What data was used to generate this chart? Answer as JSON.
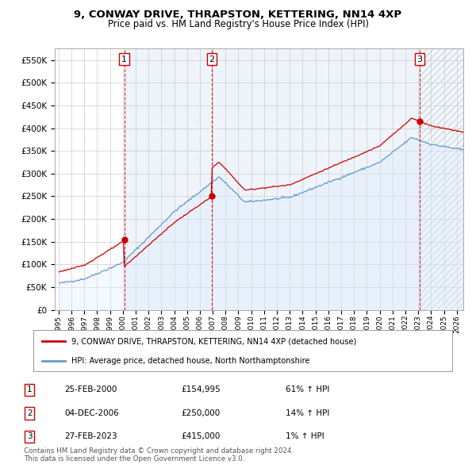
{
  "title": "9, CONWAY DRIVE, THRAPSTON, KETTERING, NN14 4XP",
  "subtitle": "Price paid vs. HM Land Registry's House Price Index (HPI)",
  "ylim": [
    0,
    575000
  ],
  "yticks": [
    0,
    50000,
    100000,
    150000,
    200000,
    250000,
    300000,
    350000,
    400000,
    450000,
    500000,
    550000
  ],
  "ytick_labels": [
    "£0",
    "£50K",
    "£100K",
    "£150K",
    "£200K",
    "£250K",
    "£300K",
    "£350K",
    "£400K",
    "£450K",
    "£500K",
    "£550K"
  ],
  "sale_times": [
    2000.121,
    2006.921,
    2023.121
  ],
  "sale_prices": [
    154995,
    250000,
    415000
  ],
  "sale_labels": [
    "1",
    "2",
    "3"
  ],
  "sale_line_color": "#cc0000",
  "hpi_line_color": "#6699cc",
  "hpi_fill_color": "#ddeeff",
  "grid_color": "#cccccc",
  "background_color": "#ffffff",
  "legend_entries": [
    "9, CONWAY DRIVE, THRAPSTON, KETTERING, NN14 4XP (detached house)",
    "HPI: Average price, detached house, North Northamptonshire"
  ],
  "table_rows": [
    [
      "1",
      "25-FEB-2000",
      "£154,995",
      "61% ↑ HPI"
    ],
    [
      "2",
      "04-DEC-2006",
      "£250,000",
      "14% ↑ HPI"
    ],
    [
      "3",
      "27-FEB-2023",
      "£415,000",
      "1% ↑ HPI"
    ]
  ],
  "footer": "Contains HM Land Registry data © Crown copyright and database right 2024.\nThis data is licensed under the Open Government Licence v3.0.",
  "x_start_year": 1995,
  "x_end_year": 2026
}
